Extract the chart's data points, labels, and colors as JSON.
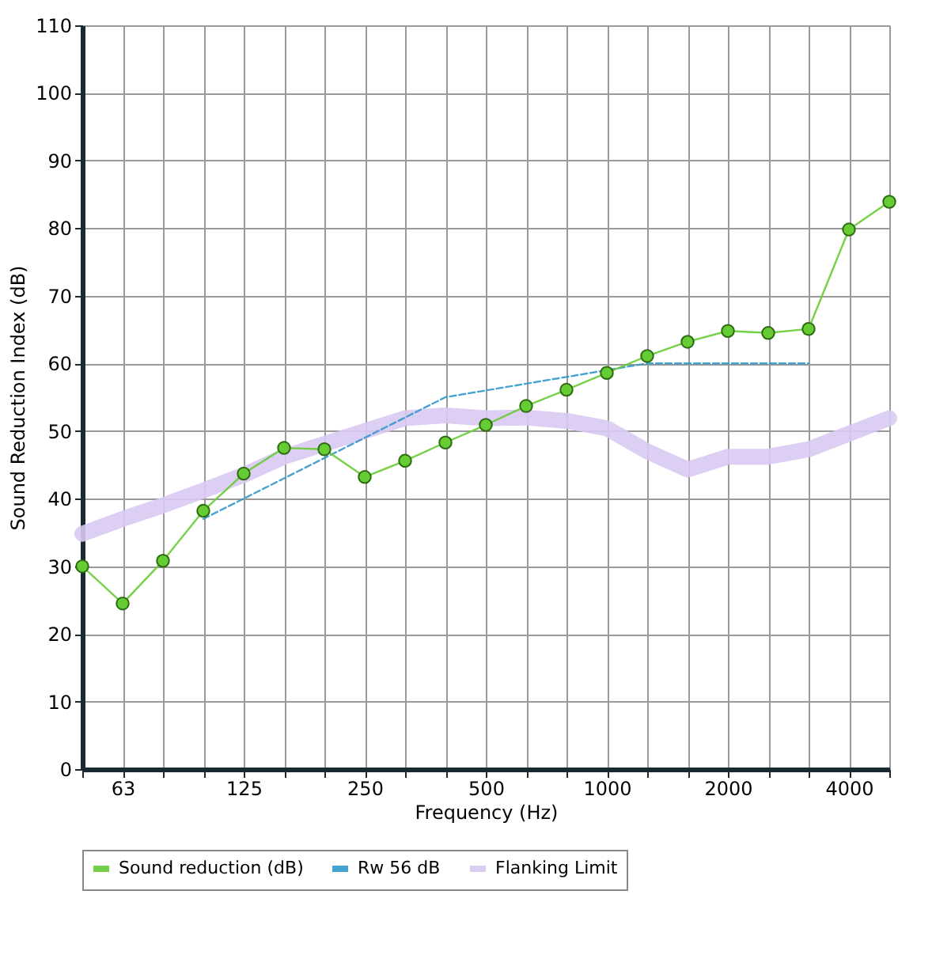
{
  "chart_data": {
    "type": "line",
    "xlabel": "Frequency (Hz)",
    "ylabel": "Sound Reduction Index (dB)",
    "categories": [
      null,
      "63",
      null,
      null,
      "125",
      null,
      null,
      "250",
      null,
      null,
      "500",
      null,
      null,
      "1000",
      null,
      null,
      "2000",
      null,
      null,
      "4000",
      null
    ],
    "series": [
      {
        "name": "Sound reduction (dB)",
        "color": "#66cc33",
        "marker": "circle",
        "line_style": "solid",
        "values": [
          30,
          24.5,
          30.8,
          38.2,
          43.7,
          47.5,
          47.3,
          43.2,
          45.6,
          48.3,
          50.9,
          53.7,
          56.1,
          58.6,
          61.1,
          63.2,
          64.8,
          64.5,
          65.1,
          79.8,
          83.9
        ]
      },
      {
        "name": "Rw 56 dB",
        "color": "#3399cc",
        "marker": "none",
        "line_style": "dashed",
        "values": [
          null,
          null,
          null,
          37,
          40,
          43,
          46,
          49,
          52,
          55,
          56,
          57,
          58,
          59,
          60,
          60,
          60,
          60,
          60,
          null,
          null
        ]
      },
      {
        "name": "Flanking Limit",
        "color": "#d9c9f2",
        "marker": "none",
        "line_style": "solid",
        "values": [
          34.8,
          37,
          39,
          41.2,
          43.5,
          46.2,
          48.1,
          50,
          51.9,
          52.3,
          51.9,
          52,
          51.5,
          50.4,
          47,
          44.3,
          46.2,
          46.2,
          47.3,
          49.6,
          51.9
        ]
      }
    ],
    "ylim": [
      0,
      110
    ],
    "yticks": [
      0,
      10,
      20,
      30,
      40,
      50,
      60,
      70,
      80,
      90,
      100,
      110
    ],
    "grid": true,
    "legend": "bottom"
  }
}
